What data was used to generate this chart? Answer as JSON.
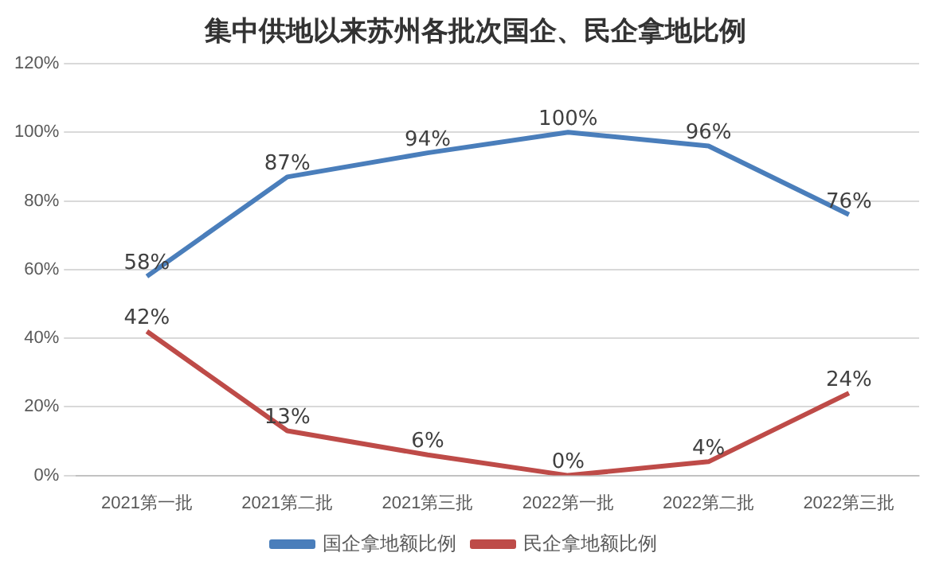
{
  "chart_data": {
    "type": "line",
    "title": "集中供地以来苏州各批次国企、民企拿地比例",
    "categories": [
      "2021第一批",
      "2021第二批",
      "2021第三批",
      "2022第一批",
      "2022第二批",
      "2022第三批"
    ],
    "series": [
      {
        "name": "国企拿地额比例",
        "color": "#4a7ebb",
        "values": [
          58,
          87,
          94,
          100,
          96,
          76
        ],
        "value_labels": [
          "58%",
          "87%",
          "94%",
          "100%",
          "96%",
          "76%"
        ]
      },
      {
        "name": "民企拿地额比例",
        "color": "#be4b48",
        "values": [
          42,
          13,
          6,
          0,
          4,
          24
        ],
        "value_labels": [
          "42%",
          "13%",
          "6%",
          "0%",
          "4%",
          "24%"
        ]
      }
    ],
    "ylim": [
      0,
      120
    ],
    "yticks": [
      {
        "value": 0,
        "label": "0%"
      },
      {
        "value": 20,
        "label": "20%"
      },
      {
        "value": 40,
        "label": "40%"
      },
      {
        "value": 60,
        "label": "60%"
      },
      {
        "value": 80,
        "label": "80%"
      },
      {
        "value": 100,
        "label": "100%"
      },
      {
        "value": 120,
        "label": "120%"
      }
    ],
    "grid": "y",
    "legend": "bottom",
    "marker": "none",
    "line_style": "solid"
  }
}
